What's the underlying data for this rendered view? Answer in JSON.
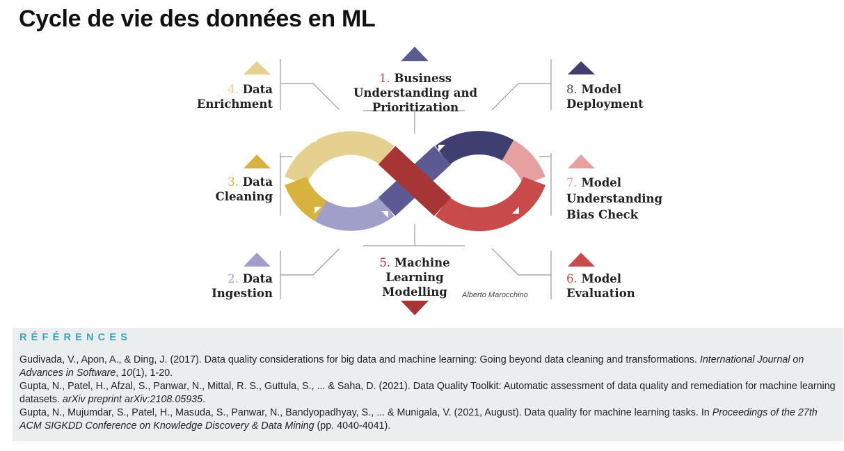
{
  "title": "Cycle de vie des données en ML",
  "diagram": {
    "stages": [
      {
        "id": 1,
        "num": "1.",
        "text": "Business Understanding and Prioritization",
        "color": "#5b5a93"
      },
      {
        "id": 2,
        "num": "2.",
        "text": "Data Ingestion",
        "color": "#a09fc9"
      },
      {
        "id": 3,
        "num": "3.",
        "text": "Data Cleaning",
        "color": "#d8b23e"
      },
      {
        "id": 4,
        "num": "4.",
        "text": "Data Enrichment",
        "color": "#e6d08f"
      },
      {
        "id": 5,
        "num": "5.",
        "text": "Machine Learning Modelling",
        "color": "#a83535"
      },
      {
        "id": 6,
        "num": "6.",
        "text": "Model Evaluation",
        "color": "#c94a4a"
      },
      {
        "id": 7,
        "num": "7.",
        "text": "Model Understanding Bias Check",
        "color": "#e7a0a0"
      },
      {
        "id": 8,
        "num": "8.",
        "text": "Model Deployment",
        "color": "#3f3e70"
      }
    ],
    "credit": "Alberto Marocchino"
  },
  "references": {
    "heading": "RÉFÉRENCES",
    "entries": [
      {
        "pre": "Gudivada, V., Apon, A., & Ding, J. (2017). Data quality considerations for big data and machine learning: Going beyond data cleaning and transformations. ",
        "journal": "International Journal on Advances in Software",
        "sep": ", ",
        "volume": "10",
        "post": "(1), 1-20."
      },
      {
        "pre": "Gupta, N., Patel, H., Afzal, S., Panwar, N., Mittal, R. S., Guttula, S., ... & Saha, D. (2021). Data Quality Toolkit: Automatic assessment of data quality and remediation for machine learning datasets. ",
        "journal": "arXiv preprint arXiv:2108.05935",
        "post": "."
      },
      {
        "pre": "Gupta, N., Mujumdar, S., Patel, H., Masuda, S., Panwar, N., Bandyopadhyay, S., ... & Munigala, V. (2021, August). Data quality for machine learning tasks. In ",
        "journal": "Proceedings of the 27th ACM SIGKDD Conference on Knowledge Discovery & Data Mining",
        "post": " (pp. 4040-4041)."
      }
    ]
  }
}
